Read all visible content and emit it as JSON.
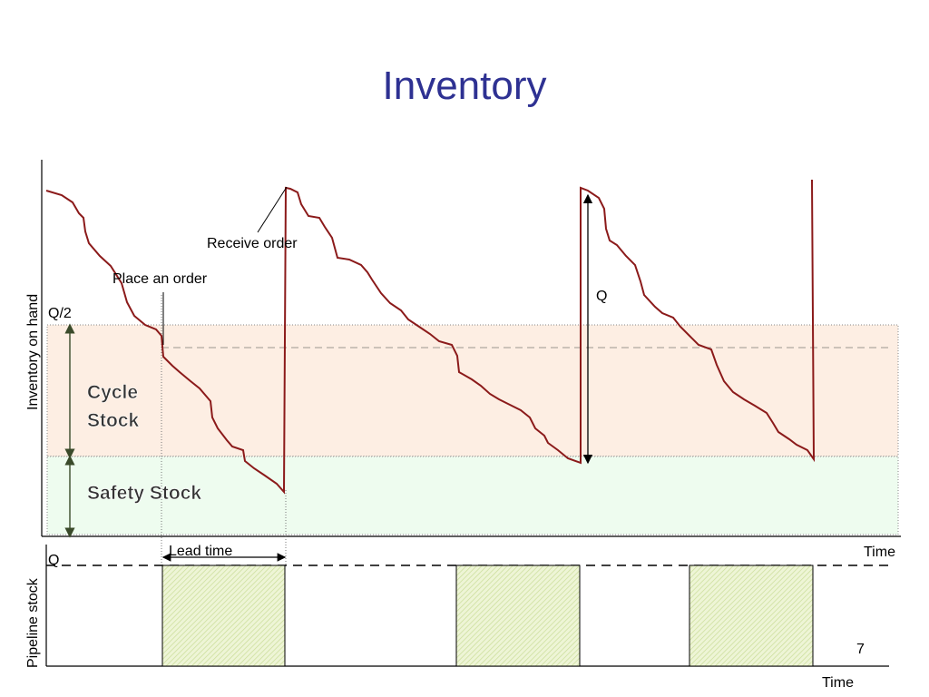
{
  "title": "Inventory",
  "labels": {
    "receive_order": "Receive order",
    "place_order": "Place an order",
    "q_top": "Q",
    "q_half": "Q/2",
    "y_axis_top": "Inventory on hand",
    "cycle_stock_line1": "Cycle",
    "cycle_stock_line2": "Stock",
    "safety_stock": "Safety Stock",
    "lead_time": "Lead time",
    "time_top": "Time",
    "q_bottom": "Q",
    "y_axis_bottom": "Pipeline stock",
    "time_bottom": "Time",
    "page_number": "7"
  },
  "colors": {
    "title": "#2e3192",
    "inventory_curve": "#8b1a1a",
    "cycle_stock_band": "#fdeee3",
    "safety_stock_band": "#eefcef",
    "pipeline_block": "#e4efc4",
    "arrow": "#3a4a2a"
  }
}
